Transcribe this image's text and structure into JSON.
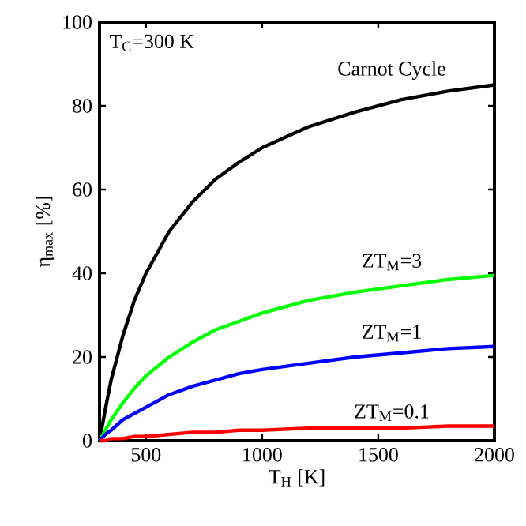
{
  "chart_data": {
    "type": "line",
    "xlabel": "T$_{H}$ [K]",
    "ylabel": "η$_{max}$ [%]",
    "annotations": [
      "T$_{C}$=300 K"
    ],
    "x": [
      300,
      325,
      350,
      400,
      450,
      500,
      600,
      700,
      800,
      900,
      1000,
      1200,
      1400,
      1600,
      1800,
      2000
    ],
    "series": [
      {
        "name": "Carnot Cycle",
        "color": "#000000",
        "values": [
          0,
          7.5,
          14.5,
          25,
          33.5,
          40,
          50,
          57,
          62.5,
          66.5,
          70,
          75,
          78.5,
          81.5,
          83.5,
          85
        ]
      },
      {
        "name": "ZT$_{M}$=3",
        "color": "#00ff00",
        "values": [
          0,
          2.5,
          5,
          9,
          12.5,
          15.5,
          20,
          23.5,
          26.5,
          28.5,
          30.5,
          33.5,
          35.5,
          37,
          38.5,
          39.5
        ]
      },
      {
        "name": "ZT$_{M}$=1",
        "color": "#0000ff",
        "values": [
          0,
          1.5,
          2.5,
          5,
          6.5,
          8,
          11,
          13,
          14.5,
          16,
          17,
          18.5,
          20,
          21,
          22,
          22.5
        ]
      },
      {
        "name": "ZT$_{M}$=0.1",
        "color": "#ff0000",
        "values": [
          0,
          0,
          0.5,
          0.5,
          1,
          1,
          1.5,
          2,
          2,
          2.5,
          2.5,
          3,
          3,
          3,
          3.5,
          3.5
        ]
      }
    ],
    "xlim": [
      300,
      2000
    ],
    "ylim": [
      0,
      100
    ],
    "xticks": [
      500,
      1000,
      1500,
      2000
    ],
    "yticks": [
      0,
      20,
      40,
      60,
      80,
      100
    ],
    "line_style": "solid"
  }
}
